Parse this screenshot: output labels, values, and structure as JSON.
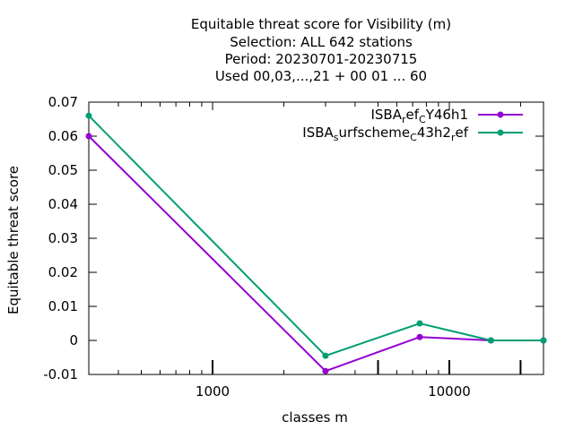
{
  "chart_data": {
    "type": "line",
    "title_lines": [
      "Equitable threat score  for Visibility (m)",
      "Selection: ALL    642 stations",
      "Period: 20230701-20230715",
      "Used  00,03,...,21  + 00 01 ... 60"
    ],
    "xlabel": "classes m",
    "ylabel": "Equitable threat score",
    "x_scale": "log",
    "xlim": [
      300,
      25000
    ],
    "ylim": [
      -0.01,
      0.07
    ],
    "x_ticks": [
      1000,
      10000
    ],
    "x_tick_labels": [
      "1000",
      "10000"
    ],
    "y_ticks": [
      -0.01,
      0,
      0.01,
      0.02,
      0.03,
      0.04,
      0.05,
      0.06,
      0.07
    ],
    "y_tick_labels": [
      "-0.01",
      "0",
      "0.01",
      "0.02",
      "0.03",
      "0.04",
      "0.05",
      "0.06",
      "0.07"
    ],
    "grid": false,
    "legend_position": "top-right",
    "series": [
      {
        "name": "ISBA_ref_CY46h1",
        "legend_parts": [
          {
            "t": "ISBA",
            "sub": false
          },
          {
            "t": "r",
            "sub": true
          },
          {
            "t": "ef",
            "sub": false
          },
          {
            "t": "C",
            "sub": true
          },
          {
            "t": "Y46h1",
            "sub": false
          }
        ],
        "color": "#9400d3",
        "x": [
          300,
          3000,
          7500,
          15000,
          25000
        ],
        "y": [
          0.06,
          -0.009,
          0.001,
          0.0,
          0.0
        ]
      },
      {
        "name": "ISBA_surfscheme_C43h2_ref",
        "legend_parts": [
          {
            "t": "ISBA",
            "sub": false
          },
          {
            "t": "s",
            "sub": true
          },
          {
            "t": "urfscheme",
            "sub": false
          },
          {
            "t": "C",
            "sub": true
          },
          {
            "t": "43h2",
            "sub": false
          },
          {
            "t": "r",
            "sub": true
          },
          {
            "t": "ef",
            "sub": false
          }
        ],
        "color": "#009e73",
        "x": [
          300,
          3000,
          7500,
          15000,
          25000
        ],
        "y": [
          0.066,
          -0.0045,
          0.005,
          0.0,
          0.0
        ]
      }
    ]
  }
}
